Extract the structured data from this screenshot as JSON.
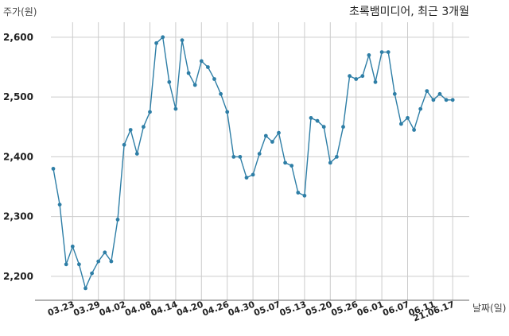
{
  "chart_data": {
    "type": "line",
    "title": "초록뱀미디어, 최근 3개월",
    "ylabel": "주가(원)",
    "xlabel": "날짜(일)",
    "ylim": [
      2160,
      2625
    ],
    "y_ticks": [
      2200,
      2300,
      2400,
      2500,
      2600
    ],
    "y_tick_labels": [
      "2,200",
      "2,300",
      "2,400",
      "2,500",
      "2,600"
    ],
    "x_tick_labels": [
      "03.23",
      "03.29",
      "04.02",
      "04.08",
      "04.14",
      "04.20",
      "04.26",
      "04.30",
      "05.07",
      "05.13",
      "05.20",
      "05.26",
      "06.01",
      "06.07",
      "06.11",
      "21.06.17"
    ],
    "x_tick_index": [
      3,
      7,
      11,
      15,
      19,
      23,
      27,
      31,
      35,
      39,
      43,
      47,
      51,
      55,
      59,
      62
    ],
    "grid": true,
    "line_color": "#2e7ea6",
    "series": [
      {
        "values": [
          2380,
          2320,
          2220,
          2250,
          2220,
          2180,
          2205,
          2225,
          2240,
          2225,
          2295,
          2420,
          2445,
          2405,
          2450,
          2475,
          2590,
          2600,
          2525,
          2480,
          2595,
          2540,
          2520,
          2560,
          2550,
          2530,
          2505,
          2475,
          2400,
          2400,
          2365,
          2370,
          2405,
          2435,
          2425,
          2440,
          2390,
          2385,
          2340,
          2335,
          2465,
          2460,
          2450,
          2390,
          2400,
          2450,
          2535,
          2530,
          2535,
          2570,
          2525,
          2575,
          2575,
          2505,
          2455,
          2465,
          2445,
          2480,
          2510,
          2495,
          2505,
          2495,
          2495
        ]
      }
    ]
  }
}
